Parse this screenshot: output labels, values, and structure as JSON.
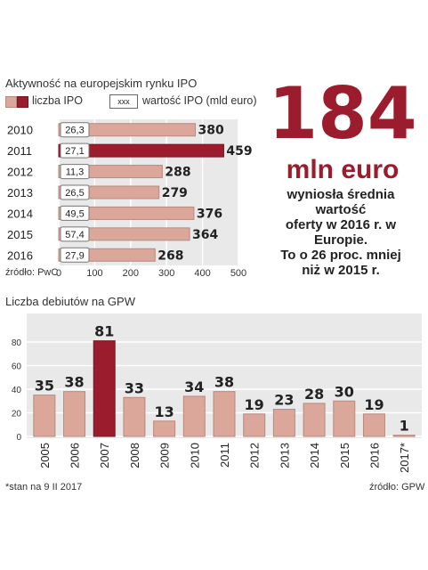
{
  "chart_data": [
    {
      "type": "bar",
      "orientation": "horizontal",
      "title": "Aktywność na europejskim rynku IPO",
      "legend": {
        "count_label": "liczba IPO",
        "value_box_sample": "xxx",
        "value_label": "wartość IPO (mld euro)"
      },
      "categories": [
        "2010",
        "2011",
        "2012",
        "2013",
        "2014",
        "2015",
        "2016"
      ],
      "values": [
        380,
        459,
        288,
        279,
        376,
        364,
        268
      ],
      "value_ipo": [
        "26,3",
        "27,1",
        "11,3",
        "26,5",
        "49,5",
        "57,4",
        "27,9"
      ],
      "highlight_index": 1,
      "xticks": [
        "0",
        "100",
        "200",
        "300",
        "400",
        "500"
      ],
      "xlim": [
        0,
        500
      ],
      "source": "źródło: PwC"
    },
    {
      "type": "bar",
      "title": "Liczba debiutów na GPW",
      "categories": [
        "2005",
        "2006",
        "2007",
        "2008",
        "2009",
        "2010",
        "2011",
        "2012",
        "2013",
        "2014",
        "2015",
        "2016",
        "2017*"
      ],
      "values": [
        35,
        38,
        81,
        33,
        13,
        34,
        38,
        19,
        23,
        28,
        30,
        19,
        1
      ],
      "highlight_index": 2,
      "yticks": [
        "0",
        "20",
        "40",
        "60",
        "80"
      ],
      "ylim": [
        0,
        80
      ],
      "footnote": "*stan na 9 II 2017",
      "source": "źródło: GPW"
    }
  ],
  "headline": {
    "number": "184",
    "unit": "mln euro",
    "lines": [
      "wyniosła średnia wartość",
      "oferty w 2016 r. w Europie.",
      "To o 26 proc. mniej",
      "niż w 2015 r."
    ]
  },
  "colors": {
    "bar": "#dba79a",
    "highlight": "#9b1c2c",
    "panel": "#e9e9e9",
    "grid": "#ffffff"
  }
}
